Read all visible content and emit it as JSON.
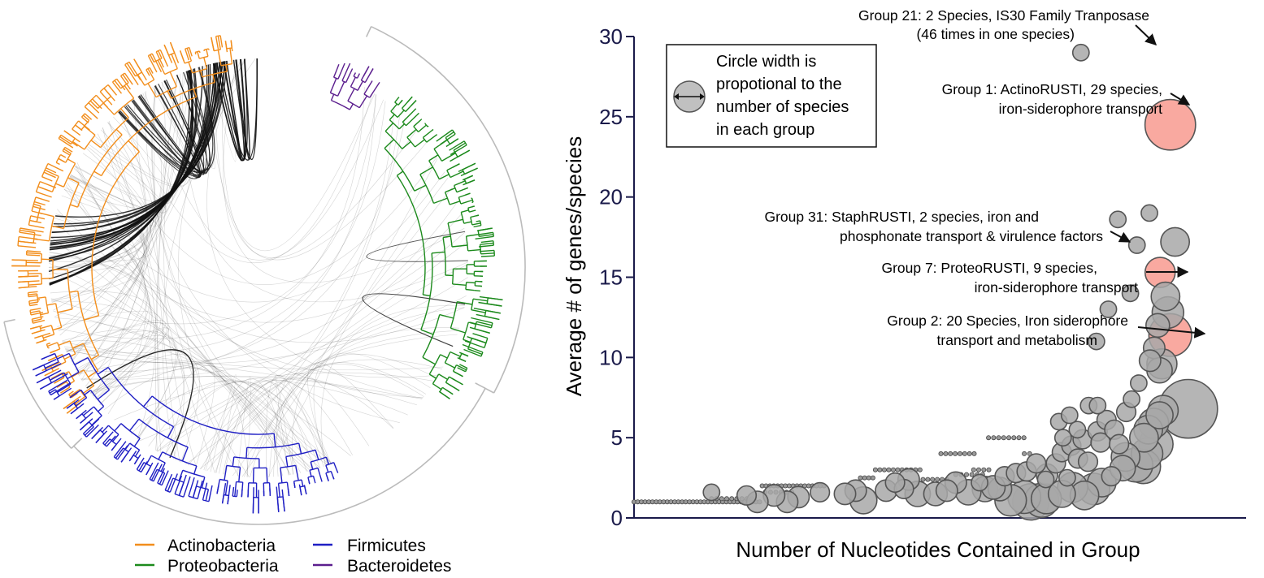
{
  "colors": {
    "actinobacteria": "#F28E1C",
    "proteobacteria": "#1C8A1C",
    "firmicutes": "#1F1FC4",
    "bacteroidetes": "#5B1E8E",
    "highlight_fill": "#F9A9A0",
    "bubble_fill": "#A8A8A8",
    "axis": "#1A1A4A",
    "arc": "#111111",
    "bracket": "#BBBBBB"
  },
  "tree_legend": [
    {
      "label": "Actinobacteria",
      "color": "#F28E1C"
    },
    {
      "label": "Proteobacteria",
      "color": "#1C8A1C"
    },
    {
      "label": "Firmicutes",
      "color": "#1F1FC4"
    },
    {
      "label": "Bacteroidetes",
      "color": "#5B1E8E"
    }
  ],
  "bubble_legend": {
    "lines": [
      "Circle width is",
      "propotional to the",
      "number of species",
      "in each group"
    ]
  },
  "annotations": [
    {
      "id": "g21",
      "lines": [
        "Group 21: 2 Species, IS30 Family Tranposase",
        "(46 times in one species)"
      ]
    },
    {
      "id": "g1",
      "lines": [
        "Group 1: ActinoRUSTI, 29 species,",
        "iron-siderophore transport"
      ]
    },
    {
      "id": "g31",
      "lines": [
        "Group 31: StaphRUSTI, 2 species, iron and",
        "phosphonate transport & virulence factors"
      ]
    },
    {
      "id": "g7",
      "lines": [
        "Group 7: ProteoRUSTI, 9 species,",
        "iron-siderophore transport"
      ]
    },
    {
      "id": "g2",
      "lines": [
        "Group 2: 20 Species, Iron siderophore",
        "transport and metabolism"
      ]
    }
  ],
  "chart_data": [
    {
      "type": "tree",
      "title": "",
      "legend": [
        "Actinobacteria",
        "Proteobacteria",
        "Firmicutes",
        "Bacteroidetes"
      ],
      "clades": [
        {
          "name": "Actinobacteria",
          "start_deg": 232,
          "end_deg": 354
        },
        {
          "name": "Bacteroidetes",
          "start_deg": 21,
          "end_deg": 34
        },
        {
          "name": "Proteobacteria",
          "start_deg": 39,
          "end_deg": 125
        },
        {
          "name": "Firmicutes",
          "start_deg": 158,
          "end_deg": 248
        }
      ]
    },
    {
      "type": "scatter",
      "title": "",
      "xlabel": "Number of Nucleotides Contained in Group",
      "ylabel": "Average # of genes/species",
      "ylim": [
        0,
        30
      ],
      "yticks": [
        0,
        5,
        10,
        15,
        20,
        25,
        30
      ],
      "xticks": [],
      "x_scale": "unlabeled (relative rank 0-100)",
      "points": [
        {
          "x": 75,
          "y": 29,
          "species": 2
        },
        {
          "x": 90,
          "y": 24.5,
          "species": 29,
          "highlight": true
        },
        {
          "x": 90,
          "y": 11.4,
          "species": 20,
          "highlight": true
        },
        {
          "x": 88.3,
          "y": 15.3,
          "species": 9,
          "highlight": true
        },
        {
          "x": 84.4,
          "y": 17,
          "species": 2
        },
        {
          "x": 81.2,
          "y": 18.6,
          "species": 2
        },
        {
          "x": 86.5,
          "y": 19,
          "species": 2
        },
        {
          "x": 90.8,
          "y": 17.2,
          "species": 8
        },
        {
          "x": 89.2,
          "y": 13.8,
          "species": 8
        },
        {
          "x": 89.6,
          "y": 12.8,
          "species": 10
        },
        {
          "x": 87.9,
          "y": 12,
          "species": 5
        },
        {
          "x": 83.3,
          "y": 14,
          "species": 2
        },
        {
          "x": 79.6,
          "y": 13,
          "species": 2
        },
        {
          "x": 77.6,
          "y": 11,
          "species": 2
        },
        {
          "x": 87.3,
          "y": 10.6,
          "species": 4
        },
        {
          "x": 86.6,
          "y": 9.8,
          "species": 4
        },
        {
          "x": 88.6,
          "y": 9.6,
          "species": 9
        },
        {
          "x": 88.2,
          "y": 9.2,
          "species": 6
        },
        {
          "x": 84.7,
          "y": 8.4,
          "species": 2
        },
        {
          "x": 83.5,
          "y": 7.4,
          "species": 2
        },
        {
          "x": 93,
          "y": 6.8,
          "species": 40
        },
        {
          "x": 88.8,
          "y": 6.7,
          "species": 9
        },
        {
          "x": 88.2,
          "y": 6.4,
          "species": 7
        },
        {
          "x": 87.2,
          "y": 5.9,
          "species": 9
        },
        {
          "x": 86.3,
          "y": 5.5,
          "species": 8
        },
        {
          "x": 85.6,
          "y": 5,
          "species": 8
        },
        {
          "x": 87.6,
          "y": 4.6,
          "species": 12
        },
        {
          "x": 86.1,
          "y": 4,
          "species": 10
        },
        {
          "x": 85.5,
          "y": 3.2,
          "species": 12
        },
        {
          "x": 84.2,
          "y": 3.3,
          "species": 12
        },
        {
          "x": 82.5,
          "y": 3.8,
          "species": 8
        },
        {
          "x": 82,
          "y": 3.1,
          "species": 6
        },
        {
          "x": 80.1,
          "y": 2.6,
          "species": 3
        },
        {
          "x": 78.5,
          "y": 2.2,
          "species": 8
        },
        {
          "x": 77.2,
          "y": 1.8,
          "species": 10
        },
        {
          "x": 75.6,
          "y": 1.4,
          "species": 8
        },
        {
          "x": 73.6,
          "y": 1.9,
          "species": 9
        },
        {
          "x": 71.8,
          "y": 1.5,
          "species": 7
        },
        {
          "x": 69.2,
          "y": 1.2,
          "species": 9
        },
        {
          "x": 68.4,
          "y": 1.1,
          "species": 12
        },
        {
          "x": 66.6,
          "y": 1.0,
          "species": 14
        },
        {
          "x": 65.5,
          "y": 1.3,
          "species": 11
        },
        {
          "x": 63.2,
          "y": 1.1,
          "species": 10
        },
        {
          "x": 61.4,
          "y": 1.8,
          "species": 5
        },
        {
          "x": 58.9,
          "y": 1.8,
          "species": 6
        },
        {
          "x": 56.1,
          "y": 1.6,
          "species": 6
        },
        {
          "x": 54,
          "y": 2.2,
          "species": 4
        },
        {
          "x": 52.5,
          "y": 1.7,
          "species": 4
        },
        {
          "x": 50.6,
          "y": 1.5,
          "species": 5
        },
        {
          "x": 47.6,
          "y": 1.5,
          "species": 6
        },
        {
          "x": 46.1,
          "y": 2.4,
          "species": 4
        },
        {
          "x": 45.3,
          "y": 1.8,
          "species": 3
        },
        {
          "x": 43.8,
          "y": 2.2,
          "species": 3
        },
        {
          "x": 42.3,
          "y": 1.7,
          "species": 4
        },
        {
          "x": 38.5,
          "y": 1.1,
          "species": 7
        },
        {
          "x": 37.2,
          "y": 1.7,
          "species": 4
        },
        {
          "x": 35.4,
          "y": 1.5,
          "species": 4
        },
        {
          "x": 31.2,
          "y": 1.6,
          "species": 3
        },
        {
          "x": 27.6,
          "y": 1.3,
          "species": 4
        },
        {
          "x": 25.7,
          "y": 1.0,
          "species": 4
        },
        {
          "x": 23.5,
          "y": 1.4,
          "species": 4
        },
        {
          "x": 20.7,
          "y": 1.0,
          "species": 4
        },
        {
          "x": 18.9,
          "y": 1.4,
          "species": 3
        },
        {
          "x": 13,
          "y": 1.6,
          "species": 2
        },
        {
          "x": 60.3,
          "y": 1.9,
          "species": 5
        },
        {
          "x": 62.2,
          "y": 2.6,
          "species": 3
        },
        {
          "x": 64.1,
          "y": 2.8,
          "species": 3
        },
        {
          "x": 65.9,
          "y": 2.9,
          "species": 3
        },
        {
          "x": 67.5,
          "y": 3.4,
          "species": 3
        },
        {
          "x": 69.3,
          "y": 2.7,
          "species": 4
        },
        {
          "x": 70.8,
          "y": 3.4,
          "species": 3
        },
        {
          "x": 71.8,
          "y": 4.1,
          "species": 3
        },
        {
          "x": 72.7,
          "y": 2.5,
          "species": 2
        },
        {
          "x": 73.4,
          "y": 4.5,
          "species": 3
        },
        {
          "x": 74.5,
          "y": 3.7,
          "species": 3
        },
        {
          "x": 75.3,
          "y": 4.9,
          "species": 3
        },
        {
          "x": 76.2,
          "y": 3.5,
          "species": 3
        },
        {
          "x": 77.8,
          "y": 5.4,
          "species": 3
        },
        {
          "x": 78.3,
          "y": 4.7,
          "species": 3
        },
        {
          "x": 79.3,
          "y": 6.1,
          "species": 3
        },
        {
          "x": 80.6,
          "y": 5.5,
          "species": 3
        },
        {
          "x": 81.4,
          "y": 4.6,
          "species": 3
        },
        {
          "x": 82.6,
          "y": 6.6,
          "species": 3
        },
        {
          "x": 76.3,
          "y": 7.0,
          "species": 2
        },
        {
          "x": 77.8,
          "y": 7.0,
          "species": 2
        },
        {
          "x": 71.3,
          "y": 6.0,
          "species": 2
        },
        {
          "x": 74.4,
          "y": 5.5,
          "species": 2
        },
        {
          "x": 73.1,
          "y": 6.4,
          "species": 2
        },
        {
          "x": 72.0,
          "y": 5.0,
          "species": 2
        },
        {
          "x": 69.1,
          "y": 2.4,
          "species": 2
        },
        {
          "x": 58.0,
          "y": 2.2,
          "species": 2
        }
      ],
      "step_clusters": [
        {
          "y": 1,
          "x_from": 0,
          "x_to": 21.5,
          "step": 0.62
        },
        {
          "y": 1.2,
          "x_from": 13,
          "x_to": 20.5,
          "step": 0.85
        },
        {
          "y": 2,
          "x_from": 21.5,
          "x_to": 32.5,
          "step": 0.65
        },
        {
          "y": 1.6,
          "x_from": 22,
          "x_to": 27,
          "step": 0.9
        },
        {
          "y": 2.5,
          "x_from": 38,
          "x_to": 40.5,
          "step": 0.7
        },
        {
          "y": 3,
          "x_from": 40.5,
          "x_to": 48.5,
          "step": 0.75
        },
        {
          "y": 2.4,
          "x_from": 48.5,
          "x_to": 52.5,
          "step": 0.8
        },
        {
          "y": 4,
          "x_from": 51.5,
          "x_to": 57.5,
          "step": 0.8
        },
        {
          "y": 3,
          "x_from": 57,
          "x_to": 60,
          "step": 0.85
        },
        {
          "y": 5,
          "x_from": 59.5,
          "x_to": 65.5,
          "step": 0.85
        },
        {
          "y": 2.7,
          "x_from": 54,
          "x_to": 59,
          "step": 0.9
        },
        {
          "y": 4,
          "x_from": 65.5,
          "x_to": 66.5,
          "step": 0.9
        }
      ]
    }
  ]
}
